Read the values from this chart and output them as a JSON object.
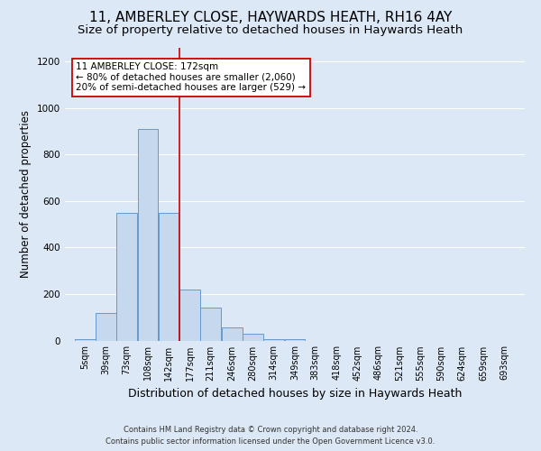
{
  "title": "11, AMBERLEY CLOSE, HAYWARDS HEATH, RH16 4AY",
  "subtitle": "Size of property relative to detached houses in Haywards Heath",
  "xlabel": "Distribution of detached houses by size in Haywards Heath",
  "ylabel": "Number of detached properties",
  "footer_line1": "Contains HM Land Registry data © Crown copyright and database right 2024.",
  "footer_line2": "Contains public sector information licensed under the Open Government Licence v3.0.",
  "bin_labels": [
    "5sqm",
    "39sqm",
    "73sqm",
    "108sqm",
    "142sqm",
    "177sqm",
    "211sqm",
    "246sqm",
    "280sqm",
    "314sqm",
    "349sqm",
    "383sqm",
    "418sqm",
    "452sqm",
    "486sqm",
    "521sqm",
    "555sqm",
    "590sqm",
    "624sqm",
    "659sqm",
    "693sqm"
  ],
  "bar_values": [
    5,
    120,
    550,
    910,
    550,
    220,
    140,
    55,
    30,
    5,
    5,
    0,
    0,
    0,
    0,
    0,
    0,
    0,
    0,
    0,
    0
  ],
  "bar_color": "#c5d8ee",
  "bar_edge_color": "#6699cc",
  "vline_x": 177,
  "annotation_label": "11 AMBERLEY CLOSE: 172sqm",
  "annotation_line2": "← 80% of detached houses are smaller (2,060)",
  "annotation_line3": "20% of semi-detached houses are larger (529) →",
  "annotation_box_facecolor": "#ffffff",
  "annotation_box_edgecolor": "#cc0000",
  "vline_color": "#cc0000",
  "ylim": [
    0,
    1260
  ],
  "background_color": "#dce8f5",
  "grid_color": "#ffffff",
  "title_fontsize": 11,
  "subtitle_fontsize": 9.5,
  "ylabel_fontsize": 8.5,
  "xlabel_fontsize": 9,
  "tick_fontsize": 7,
  "annotation_fontsize": 7.5,
  "footer_fontsize": 6
}
